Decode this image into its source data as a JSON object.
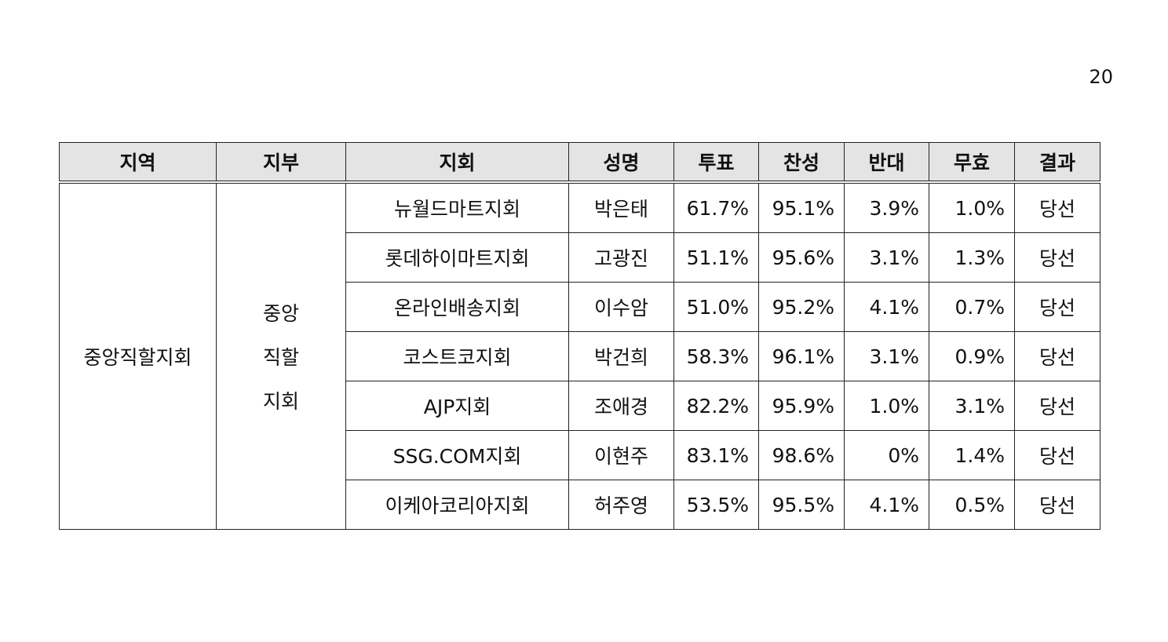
{
  "page_number": "20",
  "table": {
    "headers": {
      "region": "지역",
      "branch": "지부",
      "chapter": "지회",
      "name": "성명",
      "turnout": "투표",
      "approve": "찬성",
      "oppose": "반대",
      "invalid": "무효",
      "result": "결과"
    },
    "region": "중앙직할지회",
    "branch_lines": [
      "중앙",
      "직할",
      "지회"
    ],
    "rows": [
      {
        "chapter": "뉴월드마트지회",
        "name": "박은태",
        "turnout": "61.7%",
        "approve": "95.1%",
        "oppose": "3.9%",
        "invalid": "1.0%",
        "result": "당선"
      },
      {
        "chapter": "롯데하이마트지회",
        "name": "고광진",
        "turnout": "51.1%",
        "approve": "95.6%",
        "oppose": "3.1%",
        "invalid": "1.3%",
        "result": "당선"
      },
      {
        "chapter": "온라인배송지회",
        "name": "이수암",
        "turnout": "51.0%",
        "approve": "95.2%",
        "oppose": "4.1%",
        "invalid": "0.7%",
        "result": "당선"
      },
      {
        "chapter": "코스트코지회",
        "name": "박건희",
        "turnout": "58.3%",
        "approve": "96.1%",
        "oppose": "3.1%",
        "invalid": "0.9%",
        "result": "당선"
      },
      {
        "chapter": "AJP지회",
        "name": "조애경",
        "turnout": "82.2%",
        "approve": "95.9%",
        "oppose": "1.0%",
        "invalid": "3.1%",
        "result": "당선"
      },
      {
        "chapter": "SSG.COM지회",
        "name": "이현주",
        "turnout": "83.1%",
        "approve": "98.6%",
        "oppose": "0%",
        "invalid": "1.4%",
        "result": "당선"
      },
      {
        "chapter": "이케아코리아지회",
        "name": "허주영",
        "turnout": "53.5%",
        "approve": "95.5%",
        "oppose": "4.1%",
        "invalid": "0.5%",
        "result": "당선"
      }
    ]
  }
}
